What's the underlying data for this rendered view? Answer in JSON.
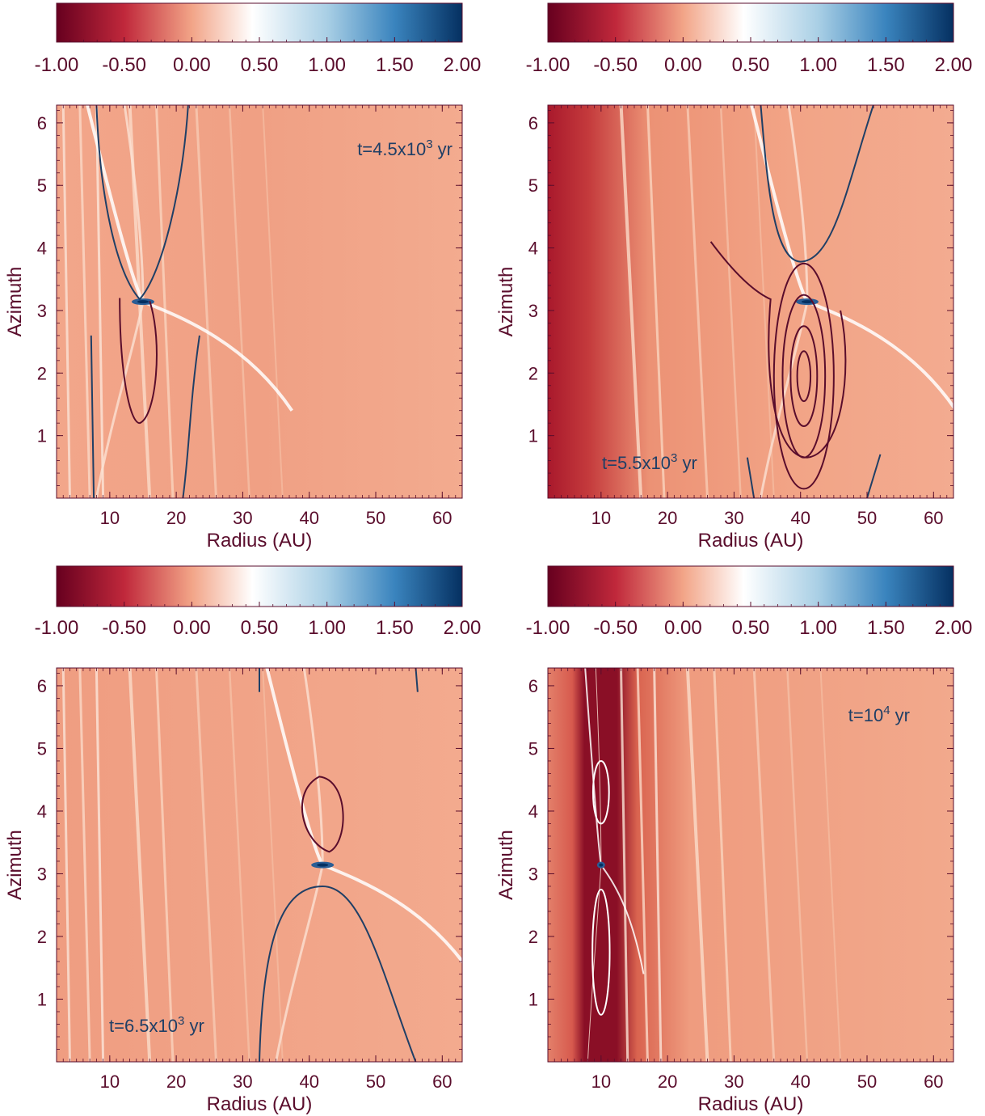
{
  "colors": {
    "text": "#5a0d2c",
    "contour_blue": "#1f3f66",
    "contour_red": "#5a0d2c",
    "contour_white": "#ffffff",
    "axis": "#5a0d2c",
    "label_blue": "#1f3f66"
  },
  "colorbar": {
    "ticks": [
      "-1.00",
      "-0.50",
      "0.00",
      "0.50",
      "1.00",
      "1.50",
      "2.00"
    ],
    "range": [
      -1.0,
      2.0
    ],
    "stops": [
      {
        "v": -1.0,
        "c": "#67001f"
      },
      {
        "v": -0.5,
        "c": "#c0283b"
      },
      {
        "v": 0.0,
        "c": "#f2a487"
      },
      {
        "v": 0.45,
        "c": "#ffffff"
      },
      {
        "v": 1.0,
        "c": "#a9cfe5"
      },
      {
        "v": 1.5,
        "c": "#3a84be"
      },
      {
        "v": 2.0,
        "c": "#053061"
      }
    ]
  },
  "chart_data": [
    {
      "type": "heatmap",
      "xlabel": "Radius (AU)",
      "ylabel": "Azimuth",
      "xlim": [
        2,
        63
      ],
      "ylim": [
        0,
        6.283
      ],
      "xticks": [
        10,
        20,
        30,
        40,
        50,
        60
      ],
      "yticks": [
        1,
        2,
        3,
        4,
        5,
        6
      ],
      "annotation": "t=4.5x10",
      "annotation_sup": "3",
      "annotation_suffix": " yr",
      "planet": {
        "r": 15,
        "phi": 3.14
      }
    },
    {
      "type": "heatmap",
      "xlabel": "Radius (AU)",
      "ylabel": "Azimuth",
      "xlim": [
        2,
        63
      ],
      "ylim": [
        0,
        6.283
      ],
      "xticks": [
        10,
        20,
        30,
        40,
        50,
        60
      ],
      "yticks": [
        1,
        2,
        3,
        4,
        5,
        6
      ],
      "annotation": "t=5.5x10",
      "annotation_sup": "3",
      "annotation_suffix": " yr",
      "planet": {
        "r": 41,
        "phi": 3.14
      }
    },
    {
      "type": "heatmap",
      "xlabel": "Radius (AU)",
      "ylabel": "Azimuth",
      "xlim": [
        2,
        63
      ],
      "ylim": [
        0,
        6.283
      ],
      "xticks": [
        10,
        20,
        30,
        40,
        50,
        60
      ],
      "yticks": [
        1,
        2,
        3,
        4,
        5,
        6
      ],
      "annotation": "t=6.5x10",
      "annotation_sup": "3",
      "annotation_suffix": " yr",
      "planet": {
        "r": 42,
        "phi": 3.14
      }
    },
    {
      "type": "heatmap",
      "xlabel": "Radius (AU)",
      "ylabel": "Azimuth",
      "xlim": [
        2,
        63
      ],
      "ylim": [
        0,
        6.283
      ],
      "xticks": [
        10,
        20,
        30,
        40,
        50,
        60
      ],
      "yticks": [
        1,
        2,
        3,
        4,
        5,
        6
      ],
      "annotation": "t=10",
      "annotation_sup": "4",
      "annotation_suffix": " yr",
      "planet": {
        "r": 10,
        "phi": 3.14
      }
    }
  ]
}
